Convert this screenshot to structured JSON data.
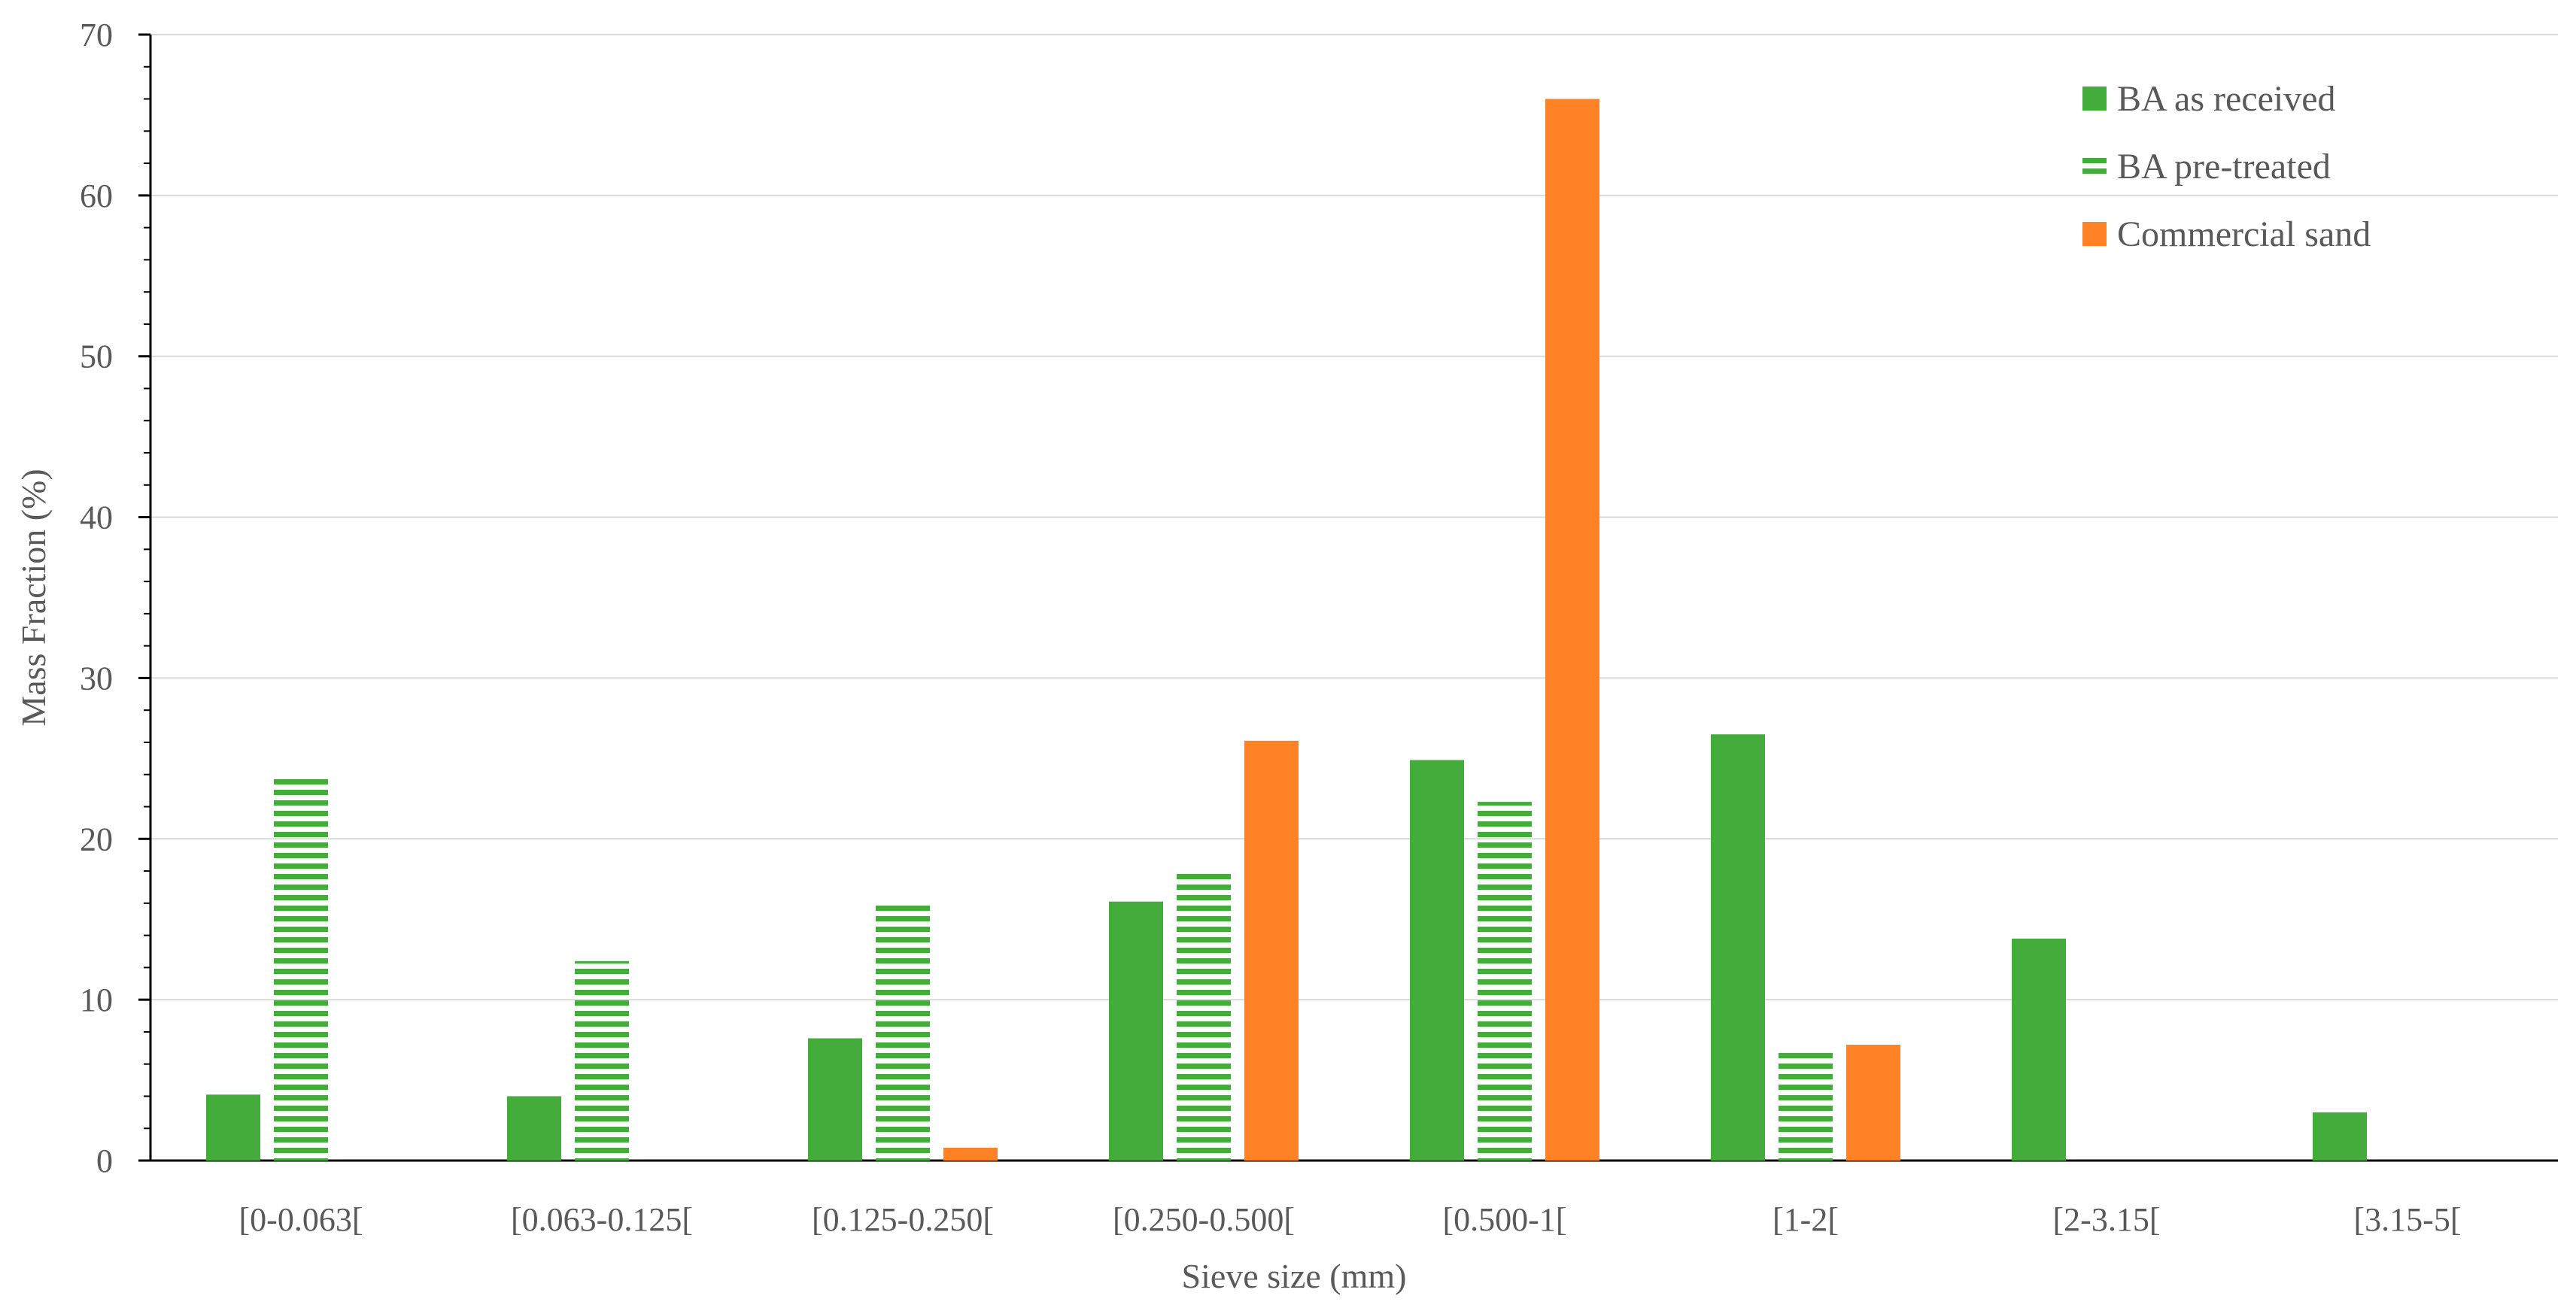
{
  "chart_data": {
    "type": "bar",
    "title": "",
    "xlabel": "Sieve size (mm)",
    "ylabel": "Mass Fraction (%)",
    "ylim": [
      0,
      70
    ],
    "yticks": [
      0,
      10,
      20,
      30,
      40,
      50,
      60,
      70
    ],
    "grid": true,
    "legend_position": "top-right",
    "categories": [
      "[0-0.063[",
      "[0.063-0.125[",
      "[0.125-0.250[",
      "[0.250-0.500[",
      "[0.500-1[",
      "[1-2[",
      "[2-3.15[",
      "[3.15-5["
    ],
    "series": [
      {
        "name": "BA as received",
        "pattern": "solid",
        "color": "#43AC3B",
        "values": [
          4.1,
          4.0,
          7.6,
          16.1,
          24.9,
          26.5,
          13.8,
          3.0
        ]
      },
      {
        "name": "BA pre-treated",
        "pattern": "horizontal-stripes",
        "color": "#43AC3B",
        "values": [
          24.0,
          12.4,
          16.1,
          17.9,
          22.3,
          6.7,
          0,
          0
        ]
      },
      {
        "name": "Commercial sand",
        "pattern": "solid",
        "color": "#FF8226",
        "values": [
          0,
          0,
          0.8,
          26.1,
          66.0,
          7.2,
          0,
          0
        ]
      }
    ]
  }
}
